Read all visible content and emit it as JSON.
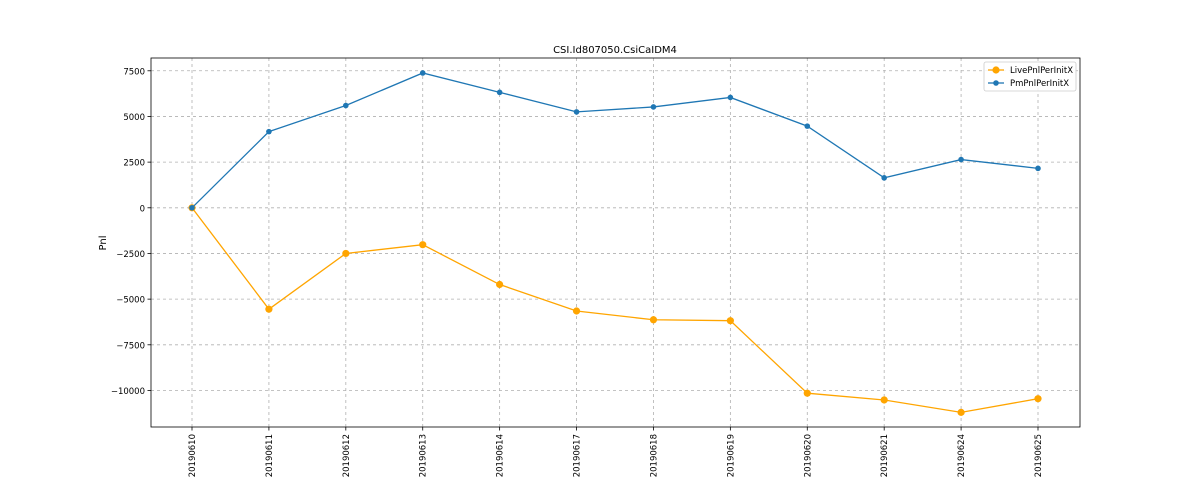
{
  "chart_data": {
    "type": "line",
    "title": "CSI.Id807050.CsiCaIDM4",
    "xlabel": "",
    "ylabel": "Pnl",
    "categories": [
      "20190610",
      "20190611",
      "20190612",
      "20190613",
      "20190614",
      "20190617",
      "20190618",
      "20190619",
      "20190620",
      "20190621",
      "20190624",
      "20190625"
    ],
    "ylim": [
      -12000,
      8200
    ],
    "yticks": [
      7500,
      5000,
      2500,
      0,
      -2500,
      -5000,
      -7500,
      -10000
    ],
    "ytick_labels": [
      "7500",
      "5000",
      "2500",
      "0",
      "−2500",
      "−5000",
      "−7500",
      "−10000"
    ],
    "grid": true,
    "legend_position": "top-right",
    "series": [
      {
        "name": "LivePnlPerInitX",
        "color": "#FFA500",
        "marker_size": "large",
        "values": [
          0,
          -5550,
          -2500,
          -2020,
          -4200,
          -5650,
          -6130,
          -6180,
          -10150,
          -10520,
          -11200,
          -10450
        ]
      },
      {
        "name": "PmPnlPerInitX",
        "color": "#1F77B4",
        "marker_size": "small",
        "values": [
          0,
          4170,
          5600,
          7380,
          6320,
          5250,
          5520,
          6040,
          4470,
          1640,
          2640,
          2160
        ]
      }
    ]
  }
}
